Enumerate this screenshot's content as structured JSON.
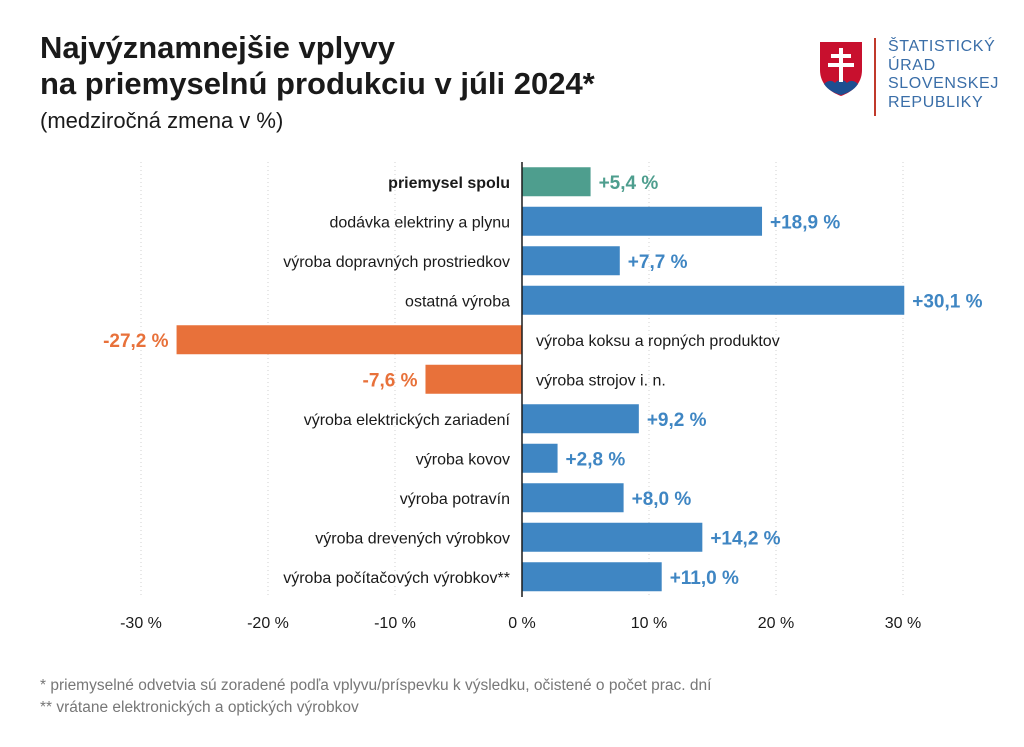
{
  "header": {
    "title_line1": "Najvýznamnejšie vplyvy",
    "title_line2": "na priemyselnú produkciu v júli 2024*",
    "subtitle": "(medziročná zmena v %)"
  },
  "logo": {
    "line1": "ŠTATISTICKÝ",
    "line2": "ÚRAD",
    "line3": "SLOVENSKEJ",
    "line4": "REPUBLIKY",
    "icon": "slovak-coat-of-arms-icon"
  },
  "footnotes": {
    "note1": "*   priemyselné odvetvia sú zoradené podľa vplyvu/príspevku k výsledku, očistené o počet prac. dní",
    "note2": "** vrátane elektronických a optických výrobkov"
  },
  "chart_data": {
    "type": "bar",
    "orientation": "horizontal",
    "title": "Najvýznamnejšie vplyvy na priemyselnú produkciu v júli 2024*",
    "xlabel": "",
    "ylabel": "",
    "xlim": [
      -30,
      30
    ],
    "xticks": [
      -30,
      -20,
      -10,
      0,
      10,
      20,
      30
    ],
    "xtick_labels": [
      "-30 %",
      "-20 %",
      "-10 %",
      "0 %",
      "10 %",
      "20 %",
      "30 %"
    ],
    "grid": true,
    "categories": [
      "priemysel spolu",
      "dodávka elektriny a plynu",
      "výroba dopravných prostriedkov",
      "ostatná výroba",
      "výroba koksu a ropných produktov",
      "výroba strojov i. n.",
      "výroba elektrických zariadení",
      "výroba kovov",
      "výroba potravín",
      "výroba drevených výrobkov",
      "výroba počítačových výrobkov**"
    ],
    "values": [
      5.4,
      18.9,
      7.7,
      30.1,
      -27.2,
      -7.6,
      9.2,
      2.8,
      8.0,
      14.2,
      11.0
    ],
    "value_labels": [
      "+5,4 %",
      "+18,9 %",
      "+7,7 %",
      "+30,1 %",
      "-27,2 %",
      "-7,6 %",
      "+9,2 %",
      "+2,8 %",
      "+8,0 %",
      "+14,2 %",
      "+11,0 %"
    ],
    "colors": {
      "total": "#4e9e8e",
      "positive": "#3f86c3",
      "negative": "#e8713a"
    }
  }
}
